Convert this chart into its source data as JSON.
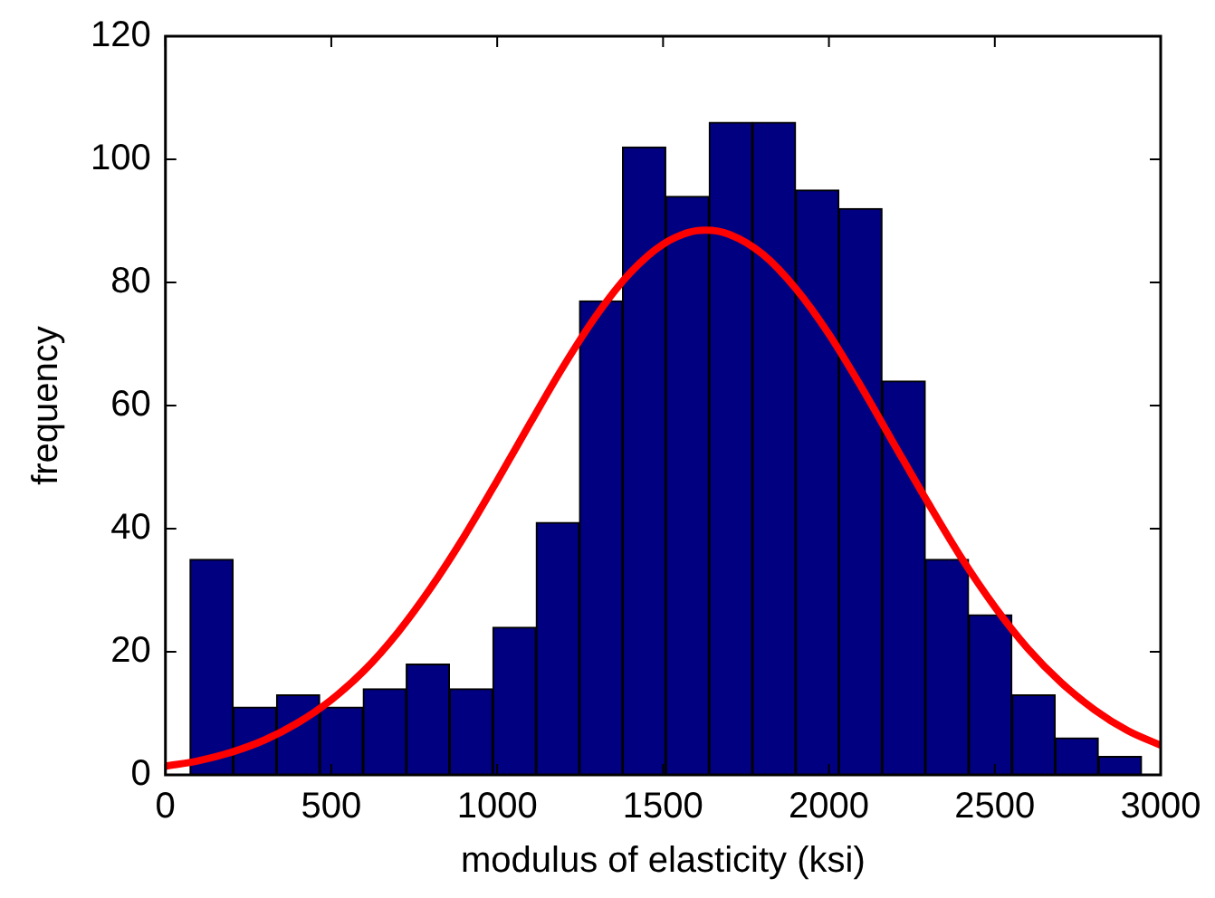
{
  "chart_data": {
    "type": "histogram",
    "xlabel": "modulus of elasticity (ksi)",
    "ylabel": "frequency",
    "xlim": [
      0,
      3000
    ],
    "xticks": [
      0,
      500,
      1000,
      1500,
      2000,
      2500,
      3000
    ],
    "ylim": [
      0,
      120
    ],
    "yticks": [
      0,
      20,
      40,
      60,
      80,
      100,
      120
    ],
    "grid": false,
    "series": [
      {
        "type": "histogram",
        "color": "#000080",
        "bins": [
          74,
          204,
          335,
          465,
          596,
          726,
          856,
          987,
          1117,
          1248,
          1378,
          1508,
          1639,
          1769,
          1900,
          2030,
          2160,
          2291,
          2421,
          2552,
          2682,
          2812,
          2943
        ],
        "values": [
          35,
          11,
          13,
          11,
          14,
          18,
          14,
          24,
          41,
          77,
          102,
          94,
          106,
          106,
          95,
          92,
          64,
          35,
          26,
          13,
          6,
          3
        ]
      },
      {
        "type": "line",
        "color": "#ff0000",
        "x": [
          0,
          100,
          200,
          300,
          400,
          500,
          600,
          700,
          800,
          900,
          1000,
          1100,
          1200,
          1300,
          1400,
          1500,
          1600,
          1630,
          1700,
          1800,
          1900,
          2000,
          2100,
          2200,
          2300,
          2400,
          2500,
          2600,
          2700,
          2800,
          2900,
          3000
        ],
        "values": [
          1.4,
          2.3,
          3.7,
          5.7,
          8.5,
          12.2,
          17,
          23.1,
          30.4,
          38.7,
          47.8,
          57.2,
          66.4,
          74.7,
          81.5,
          86.2,
          88.4,
          88.5,
          87.8,
          84.6,
          79,
          71.6,
          62.8,
          53.4,
          44.1,
          35.2,
          27.3,
          20.5,
          15,
          10.6,
          7.2,
          4.8
        ]
      }
    ]
  }
}
